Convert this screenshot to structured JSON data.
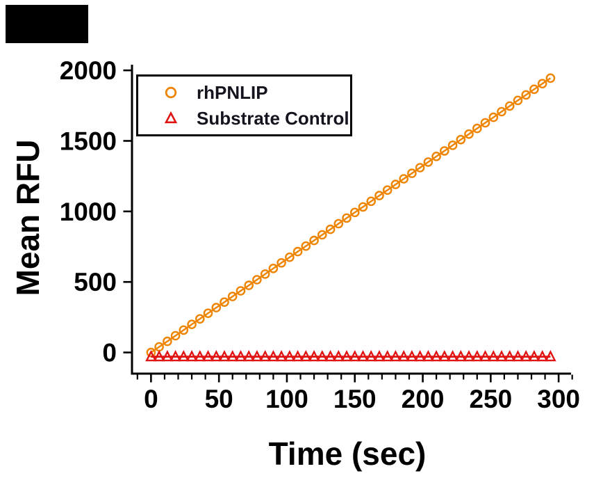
{
  "colors": {
    "background": "#ffffff",
    "axis": "#000000",
    "tick_label": "#000000",
    "legend_text": "#14141f",
    "rhpnlip_orange": "#EE8400",
    "substrate_red": "#E11414",
    "blackout": "#000000"
  },
  "chart_data": {
    "type": "scatter",
    "title": "",
    "xlabel": "Time (sec)",
    "ylabel": "Mean RFU",
    "x_tick_labels": [
      "0",
      "50",
      "100",
      "150",
      "200",
      "250",
      "300"
    ],
    "x_ticks": [
      0,
      50,
      100,
      150,
      200,
      250,
      300
    ],
    "x_minor_tick_step": 10,
    "y_tick_labels": [
      "0",
      "500",
      "1000",
      "1500",
      "2000"
    ],
    "y_ticks": [
      0,
      500,
      1000,
      1500,
      2000
    ],
    "xlim": [
      -14,
      303
    ],
    "ylim": [
      -150,
      2040
    ],
    "grid": false,
    "legend_position": "top-left",
    "x": [
      0,
      6,
      12,
      18,
      24,
      30,
      36,
      42,
      48,
      54,
      60,
      66,
      72,
      78,
      84,
      90,
      96,
      102,
      108,
      114,
      120,
      126,
      132,
      138,
      144,
      150,
      156,
      162,
      168,
      174,
      180,
      186,
      192,
      198,
      204,
      210,
      216,
      222,
      228,
      234,
      240,
      246,
      252,
      258,
      264,
      270,
      276,
      282,
      288,
      294
    ],
    "series": [
      {
        "name": "rhPNLIP",
        "marker": "circle",
        "color": "#EE8400",
        "values": [
          0,
          40,
          79,
          119,
          159,
          199,
          238,
          278,
          318,
          357,
          397,
          437,
          476,
          516,
          556,
          596,
          635,
          675,
          715,
          754,
          794,
          834,
          873,
          913,
          953,
          993,
          1032,
          1072,
          1112,
          1151,
          1191,
          1231,
          1270,
          1310,
          1350,
          1390,
          1429,
          1469,
          1509,
          1548,
          1588,
          1628,
          1667,
          1707,
          1747,
          1787,
          1826,
          1866,
          1906,
          1945
        ]
      },
      {
        "name": "Substrate Control",
        "marker": "triangle",
        "color": "#E11414",
        "values": [
          0,
          0,
          0,
          0,
          0,
          0,
          0,
          0,
          0,
          0,
          0,
          0,
          0,
          0,
          0,
          0,
          0,
          0,
          0,
          0,
          0,
          0,
          0,
          0,
          0,
          0,
          0,
          0,
          0,
          0,
          0,
          0,
          0,
          0,
          0,
          0,
          0,
          0,
          0,
          0,
          0,
          0,
          0,
          0,
          0,
          0,
          0,
          0,
          0,
          0
        ]
      }
    ]
  }
}
